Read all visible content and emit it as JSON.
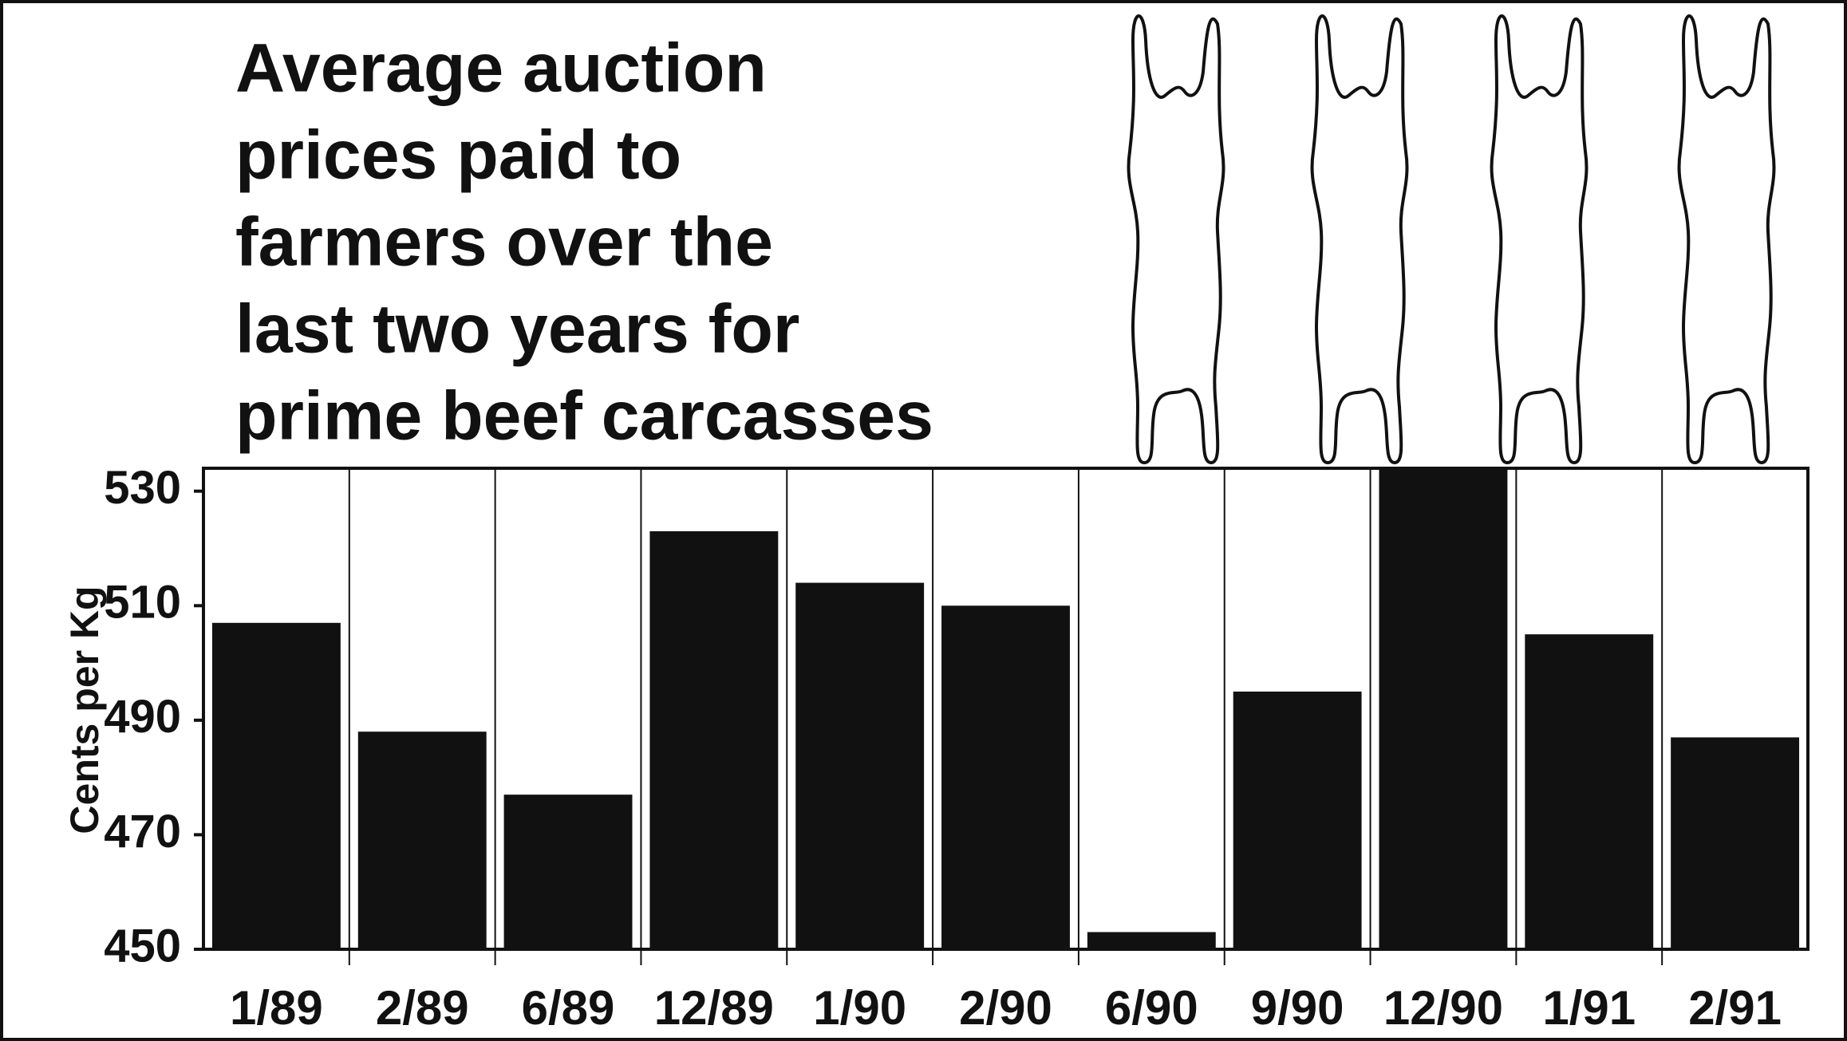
{
  "chart_data": {
    "type": "bar",
    "title_lines": [
      "Average auction",
      "prices paid to",
      "farmers over the",
      "last two years for",
      "prime beef carcasses"
    ],
    "y_label": "Cents per Kg",
    "categories": [
      "1/89",
      "2/89",
      "6/89",
      "12/89",
      "1/90",
      "2/90",
      "6/90",
      "9/90",
      "12/90",
      "1/91",
      "2/91"
    ],
    "values": [
      507,
      488,
      477,
      523,
      514,
      510,
      453,
      495,
      534,
      505,
      487
    ],
    "color": "#111111",
    "ylim": [
      450,
      534
    ],
    "yticks": [
      450,
      470,
      490,
      510,
      530
    ],
    "grid": false
  }
}
